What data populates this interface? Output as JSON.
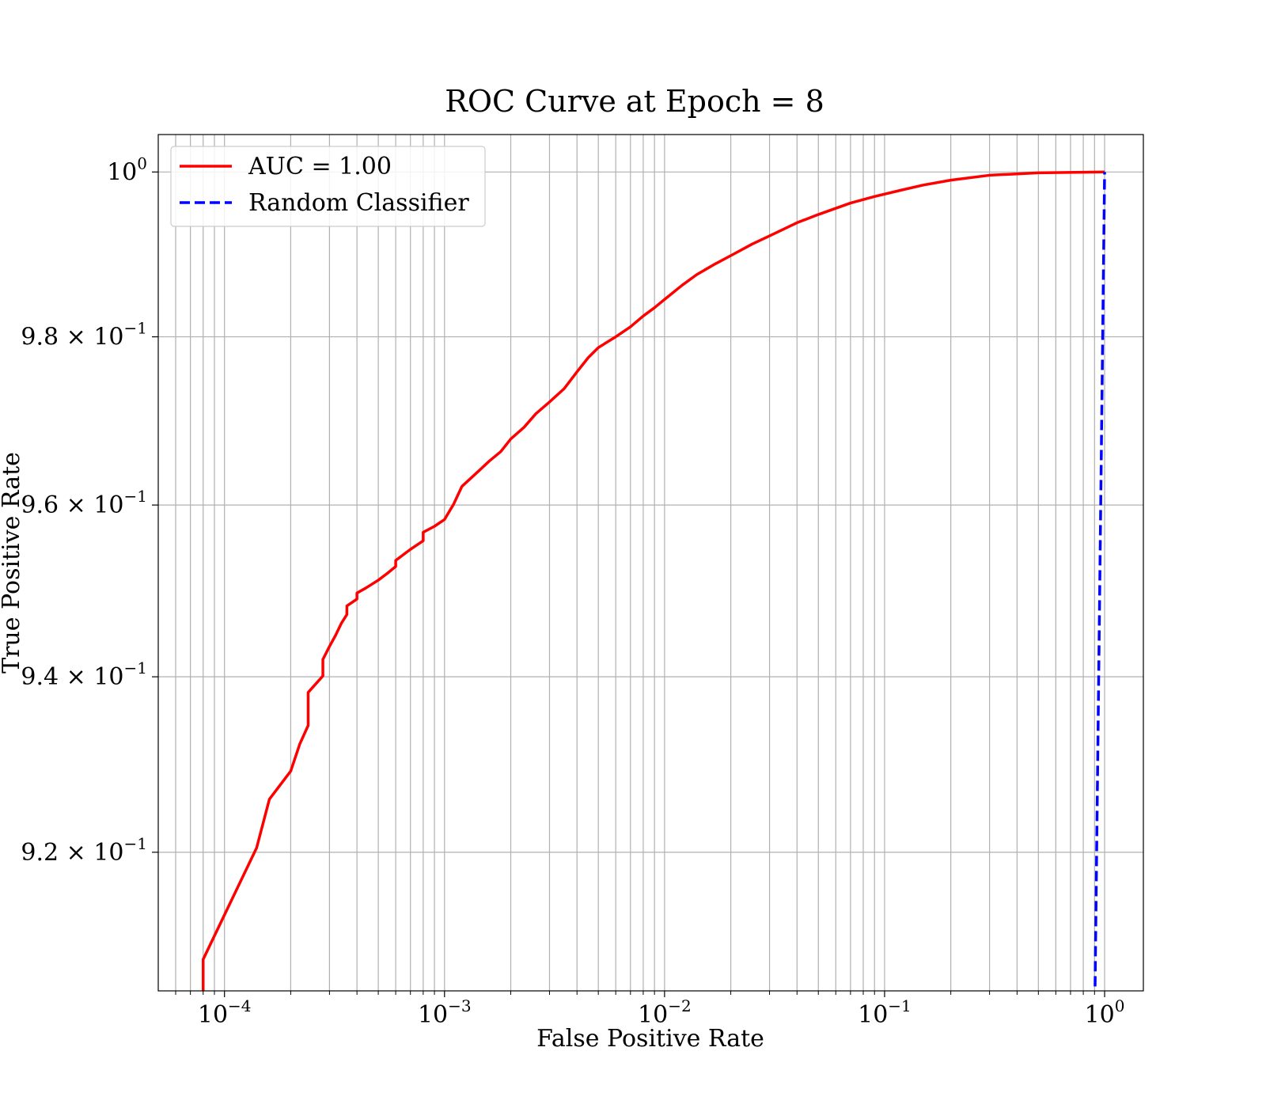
{
  "chart_data": {
    "type": "line",
    "title": "ROC Curve at Epoch = 8",
    "xlabel": "False Positive Rate",
    "ylabel": "True Positive Rate",
    "xscale": "log",
    "yscale": "log",
    "xlim": [
      5e-05,
      1.5
    ],
    "ylim": [
      0.9045,
      1.0046
    ],
    "grid": "on (major and minor)",
    "legend_position": "upper-left",
    "x_ticks": [
      {
        "value": 0.0001,
        "mantissa": "",
        "base": "10",
        "exp": "−4"
      },
      {
        "value": 0.001,
        "mantissa": "",
        "base": "10",
        "exp": "−3"
      },
      {
        "value": 0.01,
        "mantissa": "",
        "base": "10",
        "exp": "−2"
      },
      {
        "value": 0.1,
        "mantissa": "",
        "base": "10",
        "exp": "−1"
      },
      {
        "value": 1,
        "mantissa": "",
        "base": "10",
        "exp": "0"
      }
    ],
    "y_ticks": [
      {
        "value": 0.92,
        "mantissa": "9.2 × ",
        "base": "10",
        "exp": "−1"
      },
      {
        "value": 0.94,
        "mantissa": "9.4 × ",
        "base": "10",
        "exp": "−1"
      },
      {
        "value": 0.96,
        "mantissa": "9.6 × ",
        "base": "10",
        "exp": "−1"
      },
      {
        "value": 0.98,
        "mantissa": "9.8 × ",
        "base": "10",
        "exp": "−1"
      },
      {
        "value": 1.0,
        "mantissa": "",
        "base": "10",
        "exp": "0"
      }
    ],
    "series": [
      {
        "name": "AUC = 1.00",
        "color": "#ff0000",
        "style": "solid",
        "x": [
          8e-05,
          8e-05,
          0.00014,
          0.00016,
          0.0002,
          0.00022,
          0.00024,
          0.00024,
          0.00028,
          0.00028,
          0.0003,
          0.00032,
          0.00034,
          0.00036,
          0.00036,
          0.0004,
          0.0004,
          0.00044,
          0.0005,
          0.00055,
          0.0006,
          0.0006,
          0.0007,
          0.0008,
          0.0008,
          0.0009,
          0.001,
          0.0011,
          0.0012,
          0.0014,
          0.0016,
          0.0018,
          0.002,
          0.0023,
          0.0026,
          0.003,
          0.0035,
          0.004,
          0.0045,
          0.005,
          0.006,
          0.007,
          0.008,
          0.009,
          0.01,
          0.012,
          0.014,
          0.017,
          0.02,
          0.025,
          0.03,
          0.04,
          0.05,
          0.07,
          0.09,
          0.12,
          0.15,
          0.2,
          0.3,
          0.5,
          1.0
        ],
        "y": [
          0.9045,
          0.908,
          0.9205,
          0.926,
          0.9292,
          0.9323,
          0.9344,
          0.9382,
          0.9401,
          0.942,
          0.9435,
          0.9448,
          0.9462,
          0.9472,
          0.9482,
          0.949,
          0.9497,
          0.9503,
          0.9512,
          0.952,
          0.9528,
          0.9535,
          0.9548,
          0.9558,
          0.9568,
          0.9575,
          0.9583,
          0.9601,
          0.9622,
          0.9638,
          0.9652,
          0.9663,
          0.9678,
          0.9692,
          0.9708,
          0.9722,
          0.9738,
          0.9758,
          0.9775,
          0.9787,
          0.98,
          0.9812,
          0.9825,
          0.9835,
          0.9845,
          0.9862,
          0.9875,
          0.9888,
          0.9898,
          0.9912,
          0.9922,
          0.9938,
          0.9948,
          0.9962,
          0.997,
          0.9978,
          0.9984,
          0.999,
          0.9996,
          0.9999,
          1.0
        ]
      },
      {
        "name": "Random Classifier",
        "color": "#0000ff",
        "style": "dashed",
        "x": [
          0.9,
          1.0
        ],
        "y": [
          0.9,
          1.0
        ]
      }
    ]
  }
}
